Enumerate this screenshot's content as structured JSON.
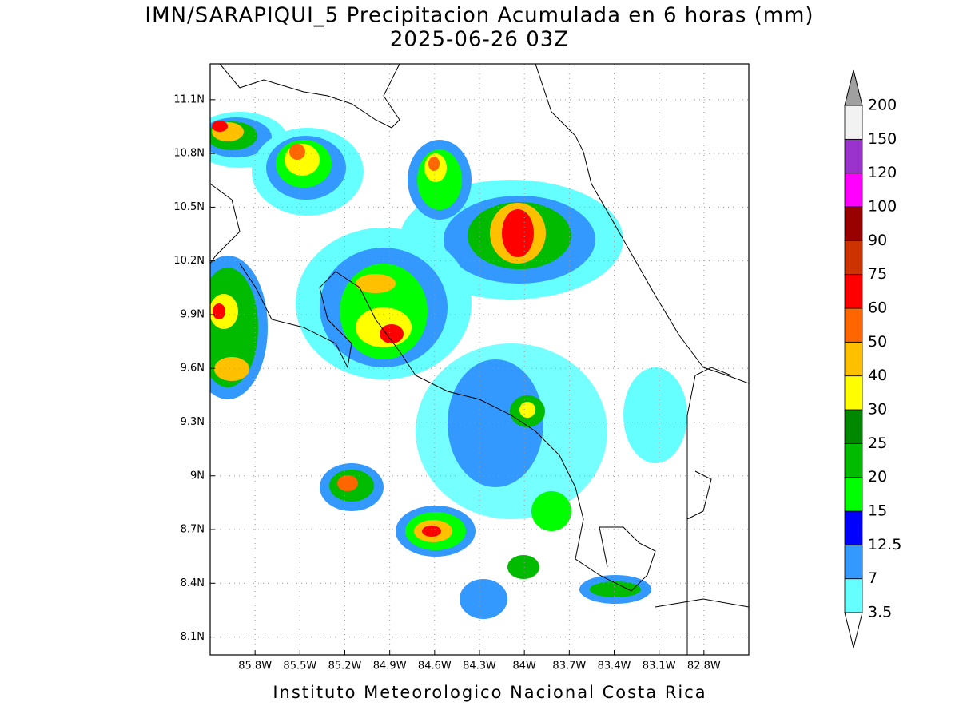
{
  "map": {
    "title": "IMN/SARAPIQUI_5 Precipitacion Acumulada en 6 horas (mm)",
    "subtitle": "2025-06-26 03Z",
    "footer": "Instituto Meteorologico Nacional Costa Rica",
    "xlim": [
      -86.1,
      -82.5
    ],
    "ylim": [
      8.0,
      11.3
    ],
    "xticks": [
      {
        "value": -85.8,
        "label": "85.8W"
      },
      {
        "value": -85.5,
        "label": "85.5W"
      },
      {
        "value": -85.2,
        "label": "85.2W"
      },
      {
        "value": -84.9,
        "label": "84.9W"
      },
      {
        "value": -84.6,
        "label": "84.6W"
      },
      {
        "value": -84.3,
        "label": "84.3W"
      },
      {
        "value": -84.0,
        "label": "84W"
      },
      {
        "value": -83.7,
        "label": "83.7W"
      },
      {
        "value": -83.4,
        "label": "83.4W"
      },
      {
        "value": -83.1,
        "label": "83.1W"
      },
      {
        "value": -82.8,
        "label": "82.8W"
      }
    ],
    "yticks": [
      {
        "value": 8.1,
        "label": "8.1N"
      },
      {
        "value": 8.4,
        "label": "8.4N"
      },
      {
        "value": 8.7,
        "label": "8.7N"
      },
      {
        "value": 9.0,
        "label": "9N"
      },
      {
        "value": 9.3,
        "label": "9.3N"
      },
      {
        "value": 9.6,
        "label": "9.6N"
      },
      {
        "value": 9.9,
        "label": "9.9N"
      },
      {
        "value": 10.2,
        "label": "10.2N"
      },
      {
        "value": 10.5,
        "label": "10.5N"
      },
      {
        "value": 10.8,
        "label": "10.8N"
      },
      {
        "value": 11.1,
        "label": "11.1N"
      }
    ],
    "grid": true,
    "colorbar": {
      "levels": [
        3.5,
        7,
        12.5,
        15,
        20,
        25,
        30,
        40,
        50,
        60,
        75,
        90,
        100,
        120,
        150,
        200
      ],
      "colors": [
        "#66ffff",
        "#3399ff",
        "#0000ff",
        "#00ff00",
        "#00bb00",
        "#008800",
        "#ffff00",
        "#ffc000",
        "#ff6600",
        "#ff0000",
        "#cc3300",
        "#990000",
        "#ff00ff",
        "#9933cc",
        "#f2f2f2"
      ],
      "under_color": "#ffffff",
      "over_color": "#a0a0a0"
    }
  }
}
